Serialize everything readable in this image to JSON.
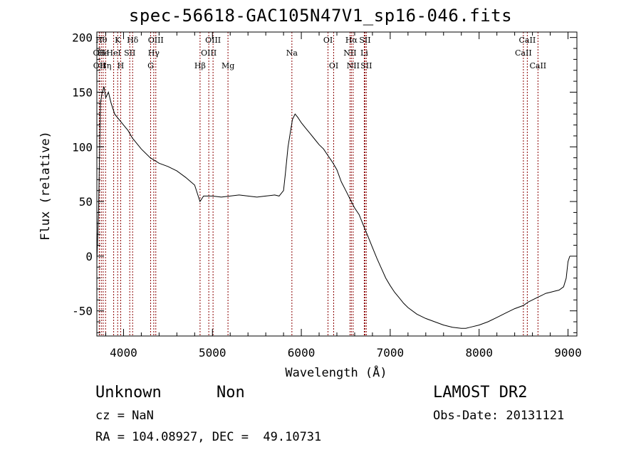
{
  "chart_data": {
    "type": "line",
    "title": "spec-56618-GAC105N47V1_sp16-046.fits",
    "xlabel": "Wavelength (Å)",
    "ylabel": "Flux (relative)",
    "xlim": [
      3700,
      9100
    ],
    "ylim": [
      -73,
      205
    ],
    "xticks": [
      4000,
      5000,
      6000,
      7000,
      8000,
      9000
    ],
    "yticks": [
      -50,
      0,
      50,
      100,
      150,
      200
    ],
    "line_color": "#000000",
    "marker_color": "#8b0000",
    "series": [
      {
        "x": [
          3700,
          3720,
          3740,
          3760,
          3780,
          3800,
          3830,
          3860,
          3900,
          3950,
          4000,
          4050,
          4100,
          4150,
          4200,
          4300,
          4400,
          4500,
          4600,
          4700,
          4800,
          4860,
          4900,
          4950,
          5000,
          5100,
          5200,
          5300,
          5400,
          5500,
          5600,
          5700,
          5750,
          5800,
          5820,
          5850,
          5880,
          5900,
          5930,
          5960,
          6000,
          6050,
          6100,
          6150,
          6200,
          6250,
          6300,
          6350,
          6400,
          6450,
          6500,
          6550,
          6600,
          6650,
          6700,
          6750,
          6800,
          6850,
          6900,
          6950,
          7000,
          7050,
          7100,
          7150,
          7200,
          7300,
          7400,
          7500,
          7600,
          7700,
          7800,
          7850,
          7900,
          8000,
          8100,
          8200,
          8300,
          8400,
          8500,
          8550,
          8600,
          8650,
          8700,
          8750,
          8800,
          8850,
          8900,
          8950,
          8980,
          9000,
          9020
        ],
        "y": [
          -5,
          45,
          140,
          150,
          155,
          145,
          150,
          140,
          130,
          125,
          120,
          115,
          108,
          103,
          98,
          90,
          85,
          82,
          78,
          72,
          65,
          50,
          55,
          55,
          55,
          54,
          55,
          56,
          55,
          54,
          55,
          56,
          55,
          60,
          75,
          100,
          115,
          125,
          130,
          127,
          122,
          117,
          112,
          107,
          102,
          98,
          92,
          86,
          79,
          68,
          60,
          52,
          44,
          38,
          28,
          18,
          8,
          -2,
          -11,
          -20,
          -27,
          -33,
          -38,
          -43,
          -47,
          -53,
          -57,
          -60,
          -63,
          -65,
          -66,
          -66,
          -65,
          -63,
          -60,
          -56,
          -52,
          -48,
          -45,
          -42,
          -40,
          -38,
          -36,
          -34,
          -33,
          -32,
          -31,
          -28,
          -20,
          -5,
          0
        ]
      }
    ],
    "line_markers": [
      {
        "wavelength": 3727,
        "label": "OII",
        "row": 2
      },
      {
        "wavelength": 3729,
        "label": "OII",
        "row": 3
      },
      {
        "wavelength": 3750,
        "label": "Hθ",
        "row": 1
      },
      {
        "wavelength": 3771,
        "label": "He",
        "row": 2
      },
      {
        "wavelength": 3798,
        "label": "Hη",
        "row": 3
      },
      {
        "wavelength": 3889,
        "label": "HeI",
        "row": 2
      },
      {
        "wavelength": 3934,
        "label": "K",
        "row": 1
      },
      {
        "wavelength": 3968,
        "label": "H",
        "row": 3
      },
      {
        "wavelength": 4070,
        "label": "SII",
        "row": 2
      },
      {
        "wavelength": 4102,
        "label": "Hδ",
        "row": 1
      },
      {
        "wavelength": 4305,
        "label": "G",
        "row": 3
      },
      {
        "wavelength": 4340,
        "label": "Hγ",
        "row": 2
      },
      {
        "wavelength": 4363,
        "label": "OIII",
        "row": 1
      },
      {
        "wavelength": 4861,
        "label": "Hβ",
        "row": 3
      },
      {
        "wavelength": 4959,
        "label": "OIII",
        "row": 2
      },
      {
        "wavelength": 5007,
        "label": "OIII",
        "row": 1
      },
      {
        "wavelength": 5175,
        "label": "Mg",
        "row": 3
      },
      {
        "wavelength": 5894,
        "label": "Na",
        "row": 2
      },
      {
        "wavelength": 6300,
        "label": "OI",
        "row": 1
      },
      {
        "wavelength": 6364,
        "label": "OI",
        "row": 3
      },
      {
        "wavelength": 6548,
        "label": "NII",
        "row": 2
      },
      {
        "wavelength": 6563,
        "label": "Hα",
        "row": 1
      },
      {
        "wavelength": 6583,
        "label": "NII",
        "row": 3
      },
      {
        "wavelength": 6708,
        "label": "Li",
        "row": 2
      },
      {
        "wavelength": 6716,
        "label": "SII",
        "row": 1
      },
      {
        "wavelength": 6731,
        "label": "SII",
        "row": 3
      },
      {
        "wavelength": 8498,
        "label": "CaII",
        "row": 2
      },
      {
        "wavelength": 8542,
        "label": "CaII",
        "row": 1
      },
      {
        "wavelength": 8662,
        "label": "CaII",
        "row": 3
      }
    ]
  },
  "info": {
    "object_class": "Unknown",
    "subclass": "Non",
    "survey": "LAMOST DR2",
    "redshift": "cz = NaN",
    "obs_date": "Obs-Date: 20131121",
    "coords": "RA = 104.08927, DEC =  49.10731"
  }
}
